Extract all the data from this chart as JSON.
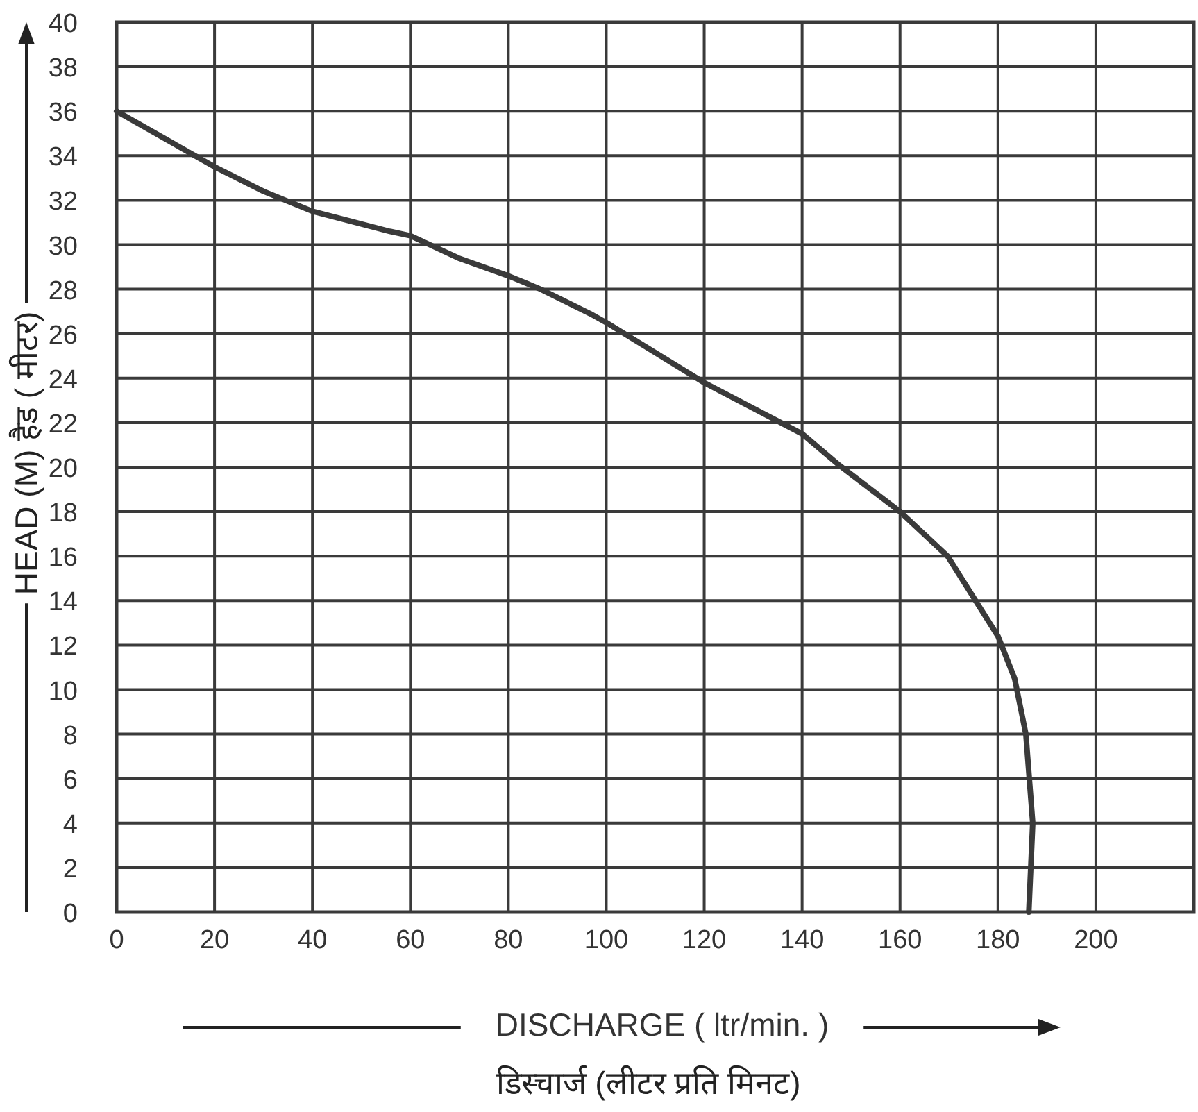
{
  "chart_data": {
    "type": "line",
    "xlabel": "DISCHARGE ( ltr/min. )",
    "ylabel": "HEAD (M) हैड ( मीटर)",
    "annotations": [
      "डिस्चार्ज (लीटर प्रति मिनट)"
    ],
    "x": [
      0,
      20,
      30,
      40,
      55.8,
      60,
      69.8,
      80,
      86.6,
      96.7,
      100,
      120,
      140,
      147.5,
      160,
      169.7,
      180,
      183.4,
      185.7,
      187.1,
      186.3
    ],
    "series": [
      {
        "color": "#3a3a3a",
        "values": [
          36,
          33.5,
          32.4,
          31.5,
          30.6,
          30.4,
          29.4,
          28.6,
          28,
          26.9,
          26.5,
          23.8,
          21.5,
          20.1,
          18,
          16,
          12.4,
          10.5,
          8,
          4,
          0
        ]
      }
    ],
    "xlim": [
      0,
      220
    ],
    "ylim": [
      0,
      40
    ],
    "xticks": [
      0,
      20,
      40,
      60,
      80,
      100,
      120,
      140,
      160,
      180,
      200
    ],
    "yticks": [
      0,
      2,
      4,
      6,
      8,
      10,
      12,
      14,
      16,
      18,
      20,
      22,
      24,
      26,
      28,
      30,
      32,
      34,
      36,
      38,
      40
    ],
    "grid": true,
    "marker": "none",
    "line_style": "solid"
  }
}
